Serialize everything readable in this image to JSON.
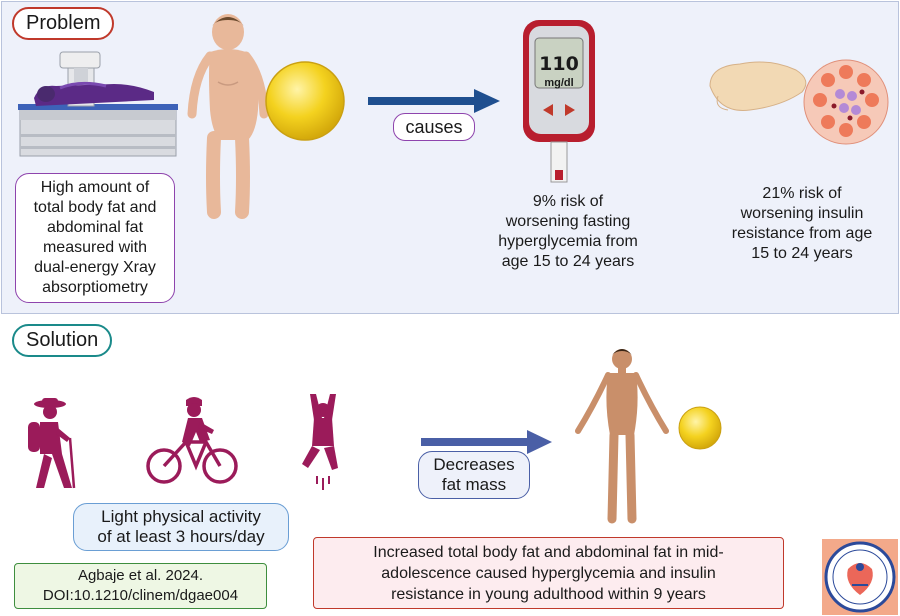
{
  "problem": {
    "label": "Problem",
    "fat_box_lines": [
      "High amount of",
      "total body fat and",
      "abdominal fat",
      "measured with",
      "dual-energy Xray",
      "absorptiometry"
    ],
    "causes_label": "causes",
    "meter_reading": "110",
    "meter_unit": "mg/dl",
    "fasting_lines": [
      "9% risk of",
      "worsening fasting",
      "hyperglycemia from",
      "age 15 to 24 years"
    ],
    "insulin_lines": [
      "21% risk of",
      "worsening insulin",
      "resistance from age",
      "15 to 24 years"
    ]
  },
  "solution": {
    "label": "Solution",
    "activity_lines": [
      "Light physical activity",
      "of at least 3 hours/day"
    ],
    "decreases_lines": [
      "Decreases",
      "fat mass"
    ],
    "result_lines": [
      "Increased total body fat and abdominal fat in mid-",
      "adolescence caused hyperglycemia and insulin",
      "resistance in young adulthood within 9 years"
    ],
    "citation_lines": [
      "Agbaje et al. 2024.",
      "DOI:10.1210/clinem/dgae004"
    ]
  },
  "colors": {
    "problem_border": "#c0392b",
    "solution_border": "#1a8a8a",
    "activity_purple": "#9b1b5a",
    "arrow_blue": "#1f4f8f",
    "arrow_blue_light": "#4a5fa6",
    "fat_yellow": "#f4d21f",
    "skin": "#e8b89a"
  }
}
